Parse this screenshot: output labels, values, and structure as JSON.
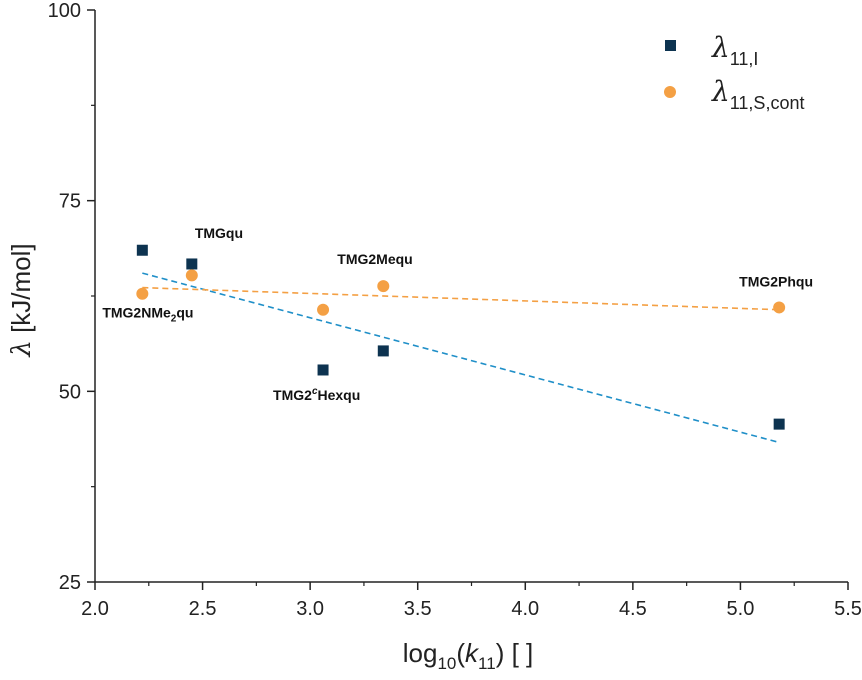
{
  "chart_data": {
    "type": "scatter",
    "xlabel": {
      "pre": "log",
      "sub1": "10",
      "mid": "(",
      "k": "k",
      "sub2": "11",
      "post": ") [ ]"
    },
    "ylabel": {
      "sym": "λ",
      "rest": " [kJ/mol]"
    },
    "xlim": [
      2.0,
      5.5
    ],
    "ylim": [
      25,
      100
    ],
    "xticks": [
      "2.0",
      "2.5",
      "3.0",
      "3.5",
      "4.0",
      "4.5",
      "5.0",
      "5.5"
    ],
    "yticks": [
      "25",
      "50",
      "75",
      "100"
    ],
    "legend_position": "top-right",
    "series": [
      {
        "name": {
          "sym": "λ",
          "sub": "11,I"
        },
        "marker": "square",
        "color": "#0d3350",
        "x": [
          2.22,
          2.45,
          3.06,
          3.34,
          5.18
        ],
        "y": [
          68.5,
          66.7,
          52.8,
          55.3,
          45.7
        ],
        "fit": {
          "x": [
            2.22,
            5.18
          ],
          "y": [
            65.5,
            43.3
          ],
          "color": "#1f8fc8"
        }
      },
      {
        "name": {
          "sym": "λ",
          "sub": "11,S,cont"
        },
        "marker": "circle",
        "color": "#f4a044",
        "x": [
          2.22,
          2.45,
          3.06,
          3.34,
          5.18
        ],
        "y": [
          62.8,
          65.2,
          60.7,
          63.8,
          61.0
        ],
        "fit": {
          "x": [
            2.22,
            5.18
          ],
          "y": [
            63.6,
            60.7
          ],
          "color": "#f4a044"
        }
      }
    ],
    "annotations": [
      {
        "text": "TMGqu",
        "x": 2.45,
        "y": 66.7
      },
      {
        "text": "TMG2NMe",
        "sub": "2",
        "text2": "qu",
        "x": 2.22,
        "y": 62.8
      },
      {
        "text": "TMG2Mequ",
        "x": 3.34,
        "y": 63.8
      },
      {
        "text": "TMG2",
        "sup": "c",
        "text2": "Hexqu",
        "x": 3.06,
        "y": 52.8
      },
      {
        "text": "TMG2Phqu",
        "x": 5.18,
        "y": 61.0
      }
    ]
  }
}
